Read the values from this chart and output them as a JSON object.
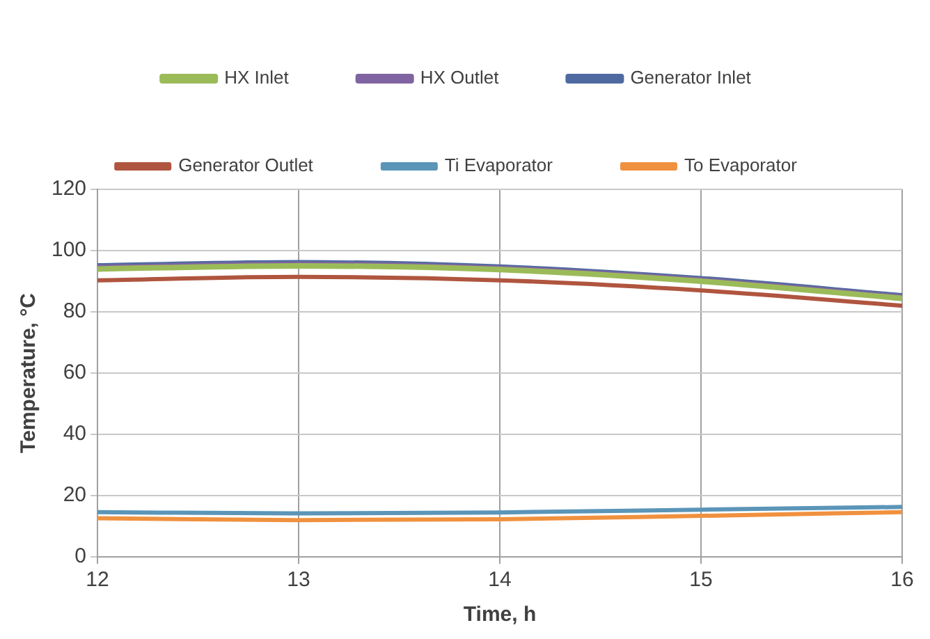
{
  "chart_data": {
    "type": "line",
    "xlabel": "Time, h",
    "ylabel": "Temperature, °C",
    "x": [
      12,
      13,
      14,
      15,
      16
    ],
    "series": [
      {
        "name": "HX Inlet",
        "color": "#9bbb59",
        "values": [
          94,
          95,
          93.8,
          90,
          84.4
        ]
      },
      {
        "name": "HX Outlet",
        "color": "#8064a2",
        "values": [
          94.5,
          95.5,
          94.2,
          90.4,
          84.8
        ]
      },
      {
        "name": "Generator Inlet",
        "color": "#4f6aa0",
        "values": [
          95,
          96,
          94.6,
          90.8,
          85.2
        ]
      },
      {
        "name": "Generator Outlet",
        "color": "#b0553f",
        "values": [
          90.3,
          91.4,
          90.3,
          87,
          82
        ]
      },
      {
        "name": "Ti Evaporator",
        "color": "#5b95b8",
        "values": [
          14.6,
          14.2,
          14.5,
          15.4,
          16.3
        ]
      },
      {
        "name": "To Evaporator",
        "color": "#f0913f",
        "values": [
          12.6,
          12,
          12.3,
          13.4,
          14.6
        ]
      }
    ],
    "xlim": [
      12,
      16
    ],
    "xticks": [
      12,
      13,
      14,
      15,
      16
    ],
    "ylim": [
      0,
      120
    ],
    "yticks": [
      0,
      20,
      40,
      60,
      80,
      100,
      120
    ],
    "grid": true,
    "legend": "top",
    "marker": "none",
    "line_style": "solid"
  }
}
